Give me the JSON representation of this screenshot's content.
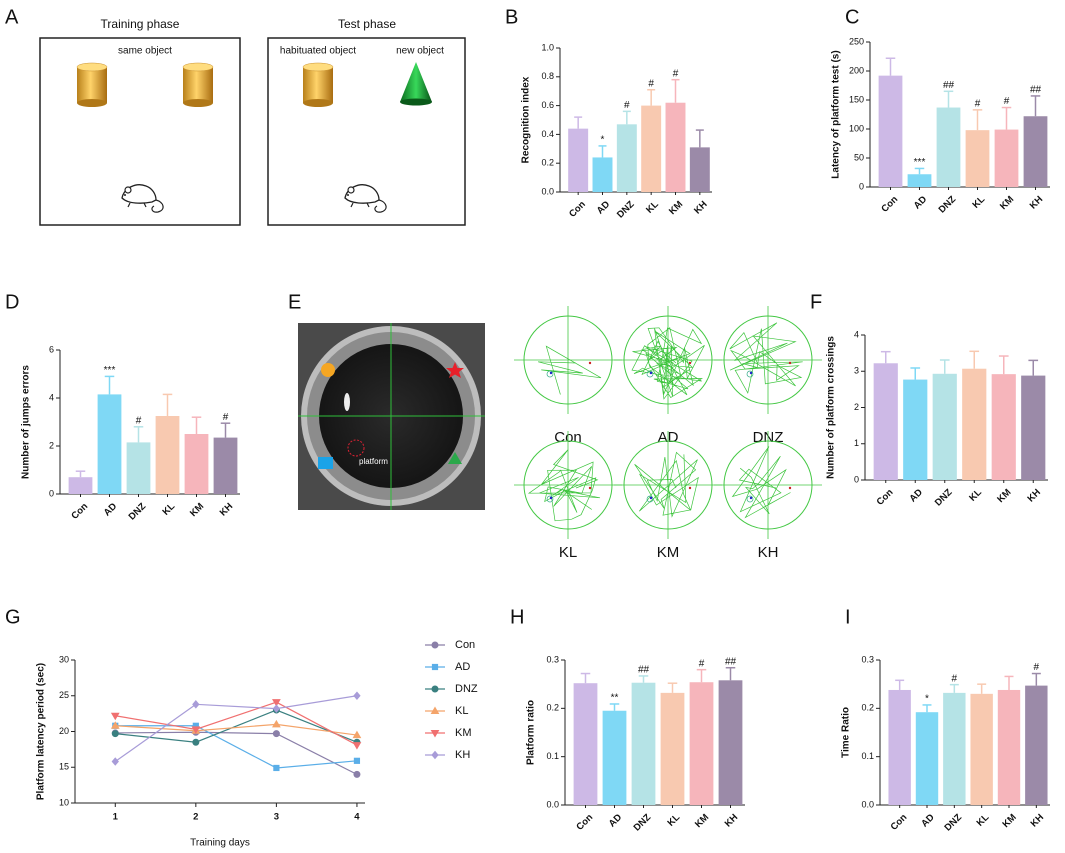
{
  "figure": {
    "A": {
      "letter": "A",
      "training_title": "Training phase",
      "same_object": "same object",
      "test_title": "Test phase",
      "habituated_object": "habituated object",
      "new_object": "new object"
    },
    "E": {
      "letter": "E",
      "platform": "platform",
      "groups": [
        "Con",
        "AD",
        "DNZ",
        "KL",
        "KM",
        "KH"
      ]
    }
  },
  "chart_data": [
    {
      "panel": "B",
      "type": "bar",
      "ylabel": "Recognition index",
      "categories": [
        "Con",
        "AD",
        "DNZ",
        "KL",
        "KM",
        "KH"
      ],
      "values": [
        0.44,
        0.24,
        0.47,
        0.6,
        0.62,
        0.31
      ],
      "errors": [
        0.08,
        0.08,
        0.09,
        0.11,
        0.16,
        0.12
      ],
      "annotations": [
        null,
        "*",
        "#",
        "#",
        "#",
        null
      ],
      "colors": [
        "#cdb9e6",
        "#7fd8f5",
        "#b5e3e6",
        "#f8c9b0",
        "#f6b5bb",
        "#9b8aa8"
      ],
      "ylim": [
        0,
        1
      ],
      "yticks": [
        {
          "value": 0,
          "label": "0.0"
        },
        0.2,
        0.4,
        0.6,
        0.8,
        {
          "value": 1,
          "label": "1.0"
        }
      ]
    },
    {
      "panel": "C",
      "type": "bar",
      "ylabel": "Latency of platform test (s)",
      "categories": [
        "Con",
        "AD",
        "DNZ",
        "KL",
        "KM",
        "KH"
      ],
      "values": [
        192,
        22,
        137,
        98,
        99,
        122
      ],
      "errors": [
        30,
        10,
        28,
        35,
        38,
        35
      ],
      "annotations": [
        null,
        "***",
        "##",
        "#",
        "#",
        "##"
      ],
      "colors": [
        "#cdb9e6",
        "#7fd8f5",
        "#b5e3e6",
        "#f8c9b0",
        "#f6b5bb",
        "#9b8aa8"
      ],
      "ylim": [
        0,
        250
      ],
      "yticks": [
        0,
        50,
        100,
        150,
        200,
        250
      ]
    },
    {
      "panel": "D",
      "type": "bar",
      "ylabel": "Number of jumps errors",
      "categories": [
        "Con",
        "AD",
        "DNZ",
        "KL",
        "KM",
        "KH"
      ],
      "values": [
        0.7,
        4.15,
        2.15,
        3.25,
        2.5,
        2.35
      ],
      "errors": [
        0.25,
        0.75,
        0.65,
        0.9,
        0.7,
        0.6
      ],
      "annotations": [
        null,
        "***",
        "#",
        null,
        null,
        "#"
      ],
      "colors": [
        "#cdb9e6",
        "#7fd8f5",
        "#b5e3e6",
        "#f8c9b0",
        "#f6b5bb",
        "#9b8aa8"
      ],
      "ylim": [
        0,
        6
      ],
      "yticks": [
        0,
        2,
        4,
        6
      ]
    },
    {
      "panel": "F",
      "type": "bar",
      "ylabel": "Number of platform crossings",
      "categories": [
        "Con",
        "AD",
        "DNZ",
        "KL",
        "KM",
        "KH"
      ],
      "values": [
        3.22,
        2.77,
        2.93,
        3.07,
        2.92,
        2.88
      ],
      "errors": [
        0.32,
        0.32,
        0.38,
        0.48,
        0.5,
        0.42
      ],
      "annotations": [
        null,
        null,
        null,
        null,
        null,
        null
      ],
      "colors": [
        "#cdb9e6",
        "#7fd8f5",
        "#b5e3e6",
        "#f8c9b0",
        "#f6b5bb",
        "#9b8aa8"
      ],
      "ylim": [
        0,
        4
      ],
      "yticks": [
        0,
        1,
        2,
        3,
        4
      ]
    },
    {
      "panel": "G",
      "type": "line",
      "ylabel": "Platform latency period (sec)",
      "xlabel": "Training days",
      "x": [
        1,
        2,
        3,
        4
      ],
      "xlim": [
        0.5,
        4.1
      ],
      "xticks": [
        1,
        2,
        3,
        4
      ],
      "ylim": [
        10,
        30
      ],
      "yticks": [
        10,
        15,
        20,
        25,
        30
      ],
      "series": [
        {
          "name": "Con",
          "color": "#8a7fa8",
          "marker": "circle",
          "values": [
            19.8,
            19.9,
            19.7,
            14.0
          ]
        },
        {
          "name": "AD",
          "color": "#5aaee8",
          "marker": "square",
          "values": [
            20.8,
            20.8,
            14.9,
            15.9
          ]
        },
        {
          "name": "DNZ",
          "color": "#3a8080",
          "marker": "circle",
          "values": [
            19.7,
            18.5,
            23.0,
            18.5
          ]
        },
        {
          "name": "KL",
          "color": "#f4a46a",
          "marker": "triangle",
          "values": [
            20.8,
            20.1,
            21.0,
            19.5
          ]
        },
        {
          "name": "KM",
          "color": "#f07070",
          "marker": "triangle-down",
          "values": [
            22.2,
            20.3,
            24.1,
            18.1
          ]
        },
        {
          "name": "KH",
          "color": "#a89cd8",
          "marker": "diamond",
          "values": [
            15.8,
            23.8,
            23.2,
            25.0
          ]
        }
      ]
    },
    {
      "panel": "H",
      "type": "bar",
      "ylabel": "Platform ratio",
      "categories": [
        "Con",
        "AD",
        "DNZ",
        "KL",
        "KM",
        "KH"
      ],
      "values": [
        0.252,
        0.195,
        0.253,
        0.232,
        0.254,
        0.258
      ],
      "errors": [
        0.02,
        0.014,
        0.014,
        0.02,
        0.026,
        0.026
      ],
      "annotations": [
        null,
        "**",
        "##",
        null,
        "#",
        "##"
      ],
      "colors": [
        "#cdb9e6",
        "#7fd8f5",
        "#b5e3e6",
        "#f8c9b0",
        "#f6b5bb",
        "#9b8aa8"
      ],
      "ylim": [
        0,
        0.3
      ],
      "yticks": [
        {
          "value": 0,
          "label": "0.0"
        },
        0.1,
        0.2,
        0.3
      ]
    },
    {
      "panel": "I",
      "type": "bar",
      "ylabel": "Time Ratio",
      "categories": [
        "Con",
        "AD",
        "DNZ",
        "KL",
        "KM",
        "KH"
      ],
      "values": [
        0.238,
        0.192,
        0.232,
        0.23,
        0.238,
        0.247
      ],
      "errors": [
        0.02,
        0.015,
        0.017,
        0.02,
        0.028,
        0.025
      ],
      "annotations": [
        null,
        "*",
        "#",
        null,
        null,
        "#"
      ],
      "colors": [
        "#cdb9e6",
        "#7fd8f5",
        "#b5e3e6",
        "#f8c9b0",
        "#f6b5bb",
        "#9b8aa8"
      ],
      "ylim": [
        0,
        0.3
      ],
      "yticks": [
        {
          "value": 0,
          "label": "0.0"
        },
        0.1,
        0.2,
        0.3
      ]
    }
  ]
}
